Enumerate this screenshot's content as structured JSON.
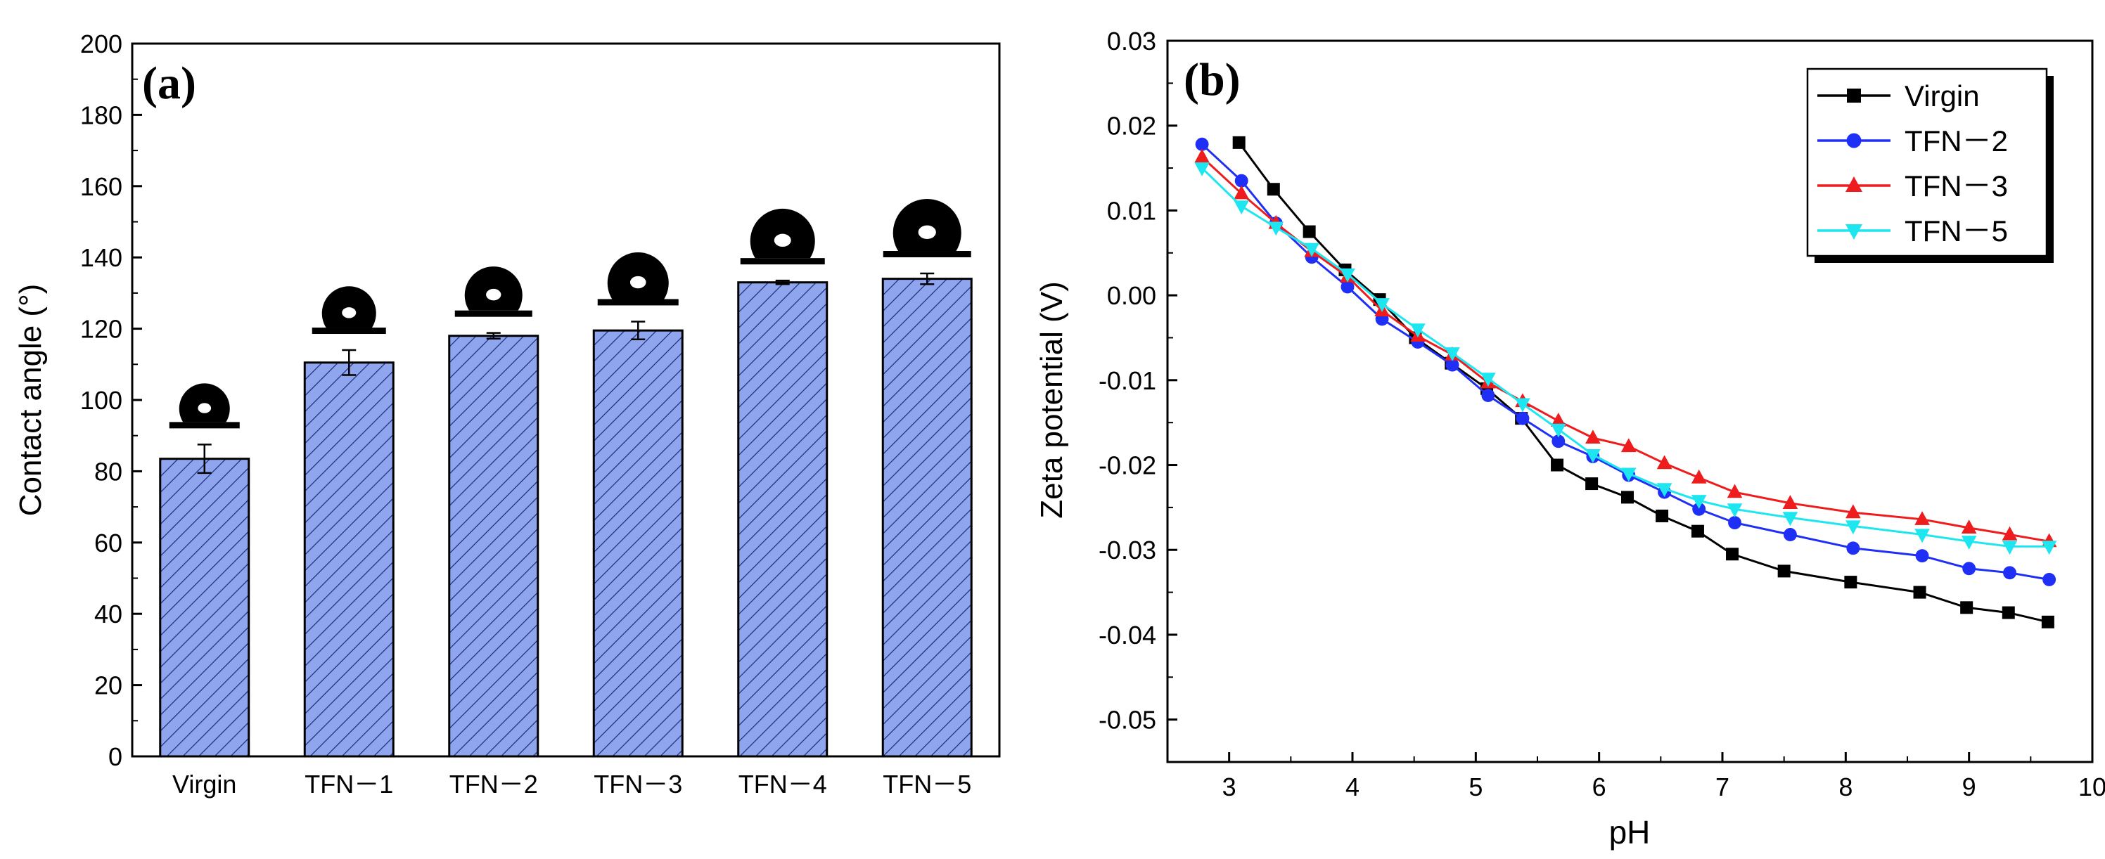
{
  "panels": {
    "a": {
      "label": "(a)"
    },
    "b": {
      "label": "(b)"
    }
  },
  "chart_data": [
    {
      "type": "bar",
      "panel": "(a)",
      "title": "",
      "xlabel": "",
      "ylabel": "Contact angle (°)",
      "ylim": [
        0,
        200
      ],
      "yticks": [
        0,
        20,
        40,
        60,
        80,
        100,
        120,
        140,
        160,
        180,
        200
      ],
      "categories": [
        "Virgin",
        "TFN－1",
        "TFN－2",
        "TFN－3",
        "TFN－4",
        "TFN－5"
      ],
      "values": [
        83.5,
        110.5,
        118,
        119.5,
        133,
        134
      ],
      "errors": [
        4,
        3.5,
        0.8,
        2.5,
        0.5,
        1.5
      ],
      "bar_color": "#8fa5ee",
      "bar_hatch": "diagonal",
      "droplet_icons": true,
      "grid": false,
      "legend": "none"
    },
    {
      "type": "line",
      "panel": "(b)",
      "title": "",
      "xlabel": "pH",
      "ylabel": "Zeta potential (V)",
      "xlim": [
        2.5,
        10
      ],
      "ylim": [
        -0.055,
        0.03
      ],
      "xticks": [
        3,
        4,
        5,
        6,
        7,
        8,
        9,
        10
      ],
      "yticks": [
        0.03,
        0.02,
        0.01,
        0.0,
        -0.01,
        -0.02,
        -0.03,
        -0.04,
        -0.05
      ],
      "ytick_labels": [
        "0.03",
        "0.02",
        "0.01",
        "0.00",
        "-0.01",
        "-0.02",
        "-0.03",
        "-0.04",
        "-0.05"
      ],
      "grid": false,
      "legend": "top-right",
      "series": [
        {
          "name": "Virgin",
          "color": "#000000",
          "marker": "square",
          "x": [
            3.08,
            3.36,
            3.65,
            3.94,
            4.22,
            4.51,
            4.8,
            5.09,
            5.37,
            5.66,
            5.94,
            6.23,
            6.51,
            6.8,
            7.08,
            7.5,
            8.04,
            8.6,
            8.98,
            9.32,
            9.64
          ],
          "y": [
            0.018,
            0.0125,
            0.0075,
            0.003,
            -0.0005,
            -0.005,
            -0.008,
            -0.011,
            -0.0145,
            -0.02,
            -0.0222,
            -0.0238,
            -0.026,
            -0.0278,
            -0.0305,
            -0.0325,
            -0.0338,
            -0.035,
            -0.0368,
            -0.0374,
            -0.0385
          ]
        },
        {
          "name": "TFN－2",
          "color": "#1f2ff5",
          "marker": "circle",
          "x": [
            2.78,
            3.1,
            3.38,
            3.67,
            3.96,
            4.24,
            4.53,
            4.81,
            5.1,
            5.38,
            5.67,
            5.95,
            6.24,
            6.53,
            6.81,
            7.1,
            7.55,
            8.06,
            8.62,
            9.0,
            9.33,
            9.65
          ],
          "y": [
            0.0178,
            0.0135,
            0.0085,
            0.0045,
            0.001,
            -0.0028,
            -0.0055,
            -0.0082,
            -0.0118,
            -0.0145,
            -0.0172,
            -0.019,
            -0.0212,
            -0.0232,
            -0.0252,
            -0.0268,
            -0.0282,
            -0.0298,
            -0.0307,
            -0.0322,
            -0.0327,
            -0.0335
          ]
        },
        {
          "name": "TFN－3",
          "color": "#ee1c1c",
          "marker": "triangle-up",
          "x": [
            2.78,
            3.1,
            3.38,
            3.67,
            3.96,
            4.24,
            4.53,
            4.81,
            5.1,
            5.38,
            5.67,
            5.95,
            6.24,
            6.53,
            6.81,
            7.1,
            7.55,
            8.06,
            8.62,
            9.0,
            9.33,
            9.65
          ],
          "y": [
            0.0163,
            0.012,
            0.0085,
            0.0052,
            0.0022,
            -0.0018,
            -0.0048,
            -0.007,
            -0.0103,
            -0.0125,
            -0.0148,
            -0.0168,
            -0.0178,
            -0.0198,
            -0.0215,
            -0.0232,
            -0.0245,
            -0.0256,
            -0.0264,
            -0.0274,
            -0.0282,
            -0.029
          ]
        },
        {
          "name": "TFN－5",
          "color": "#1ee6f0",
          "marker": "triangle-down",
          "x": [
            2.78,
            3.1,
            3.38,
            3.67,
            3.96,
            4.24,
            4.53,
            4.81,
            5.1,
            5.38,
            5.67,
            5.95,
            6.24,
            6.53,
            6.81,
            7.1,
            7.55,
            8.06,
            8.62,
            9.0,
            9.33,
            9.65
          ],
          "y": [
            0.015,
            0.0105,
            0.008,
            0.0055,
            0.0025,
            -0.001,
            -0.004,
            -0.0068,
            -0.0098,
            -0.0128,
            -0.0158,
            -0.0188,
            -0.021,
            -0.0228,
            -0.0242,
            -0.0252,
            -0.0262,
            -0.0272,
            -0.0282,
            -0.029,
            -0.0296,
            -0.0296
          ]
        }
      ]
    }
  ]
}
